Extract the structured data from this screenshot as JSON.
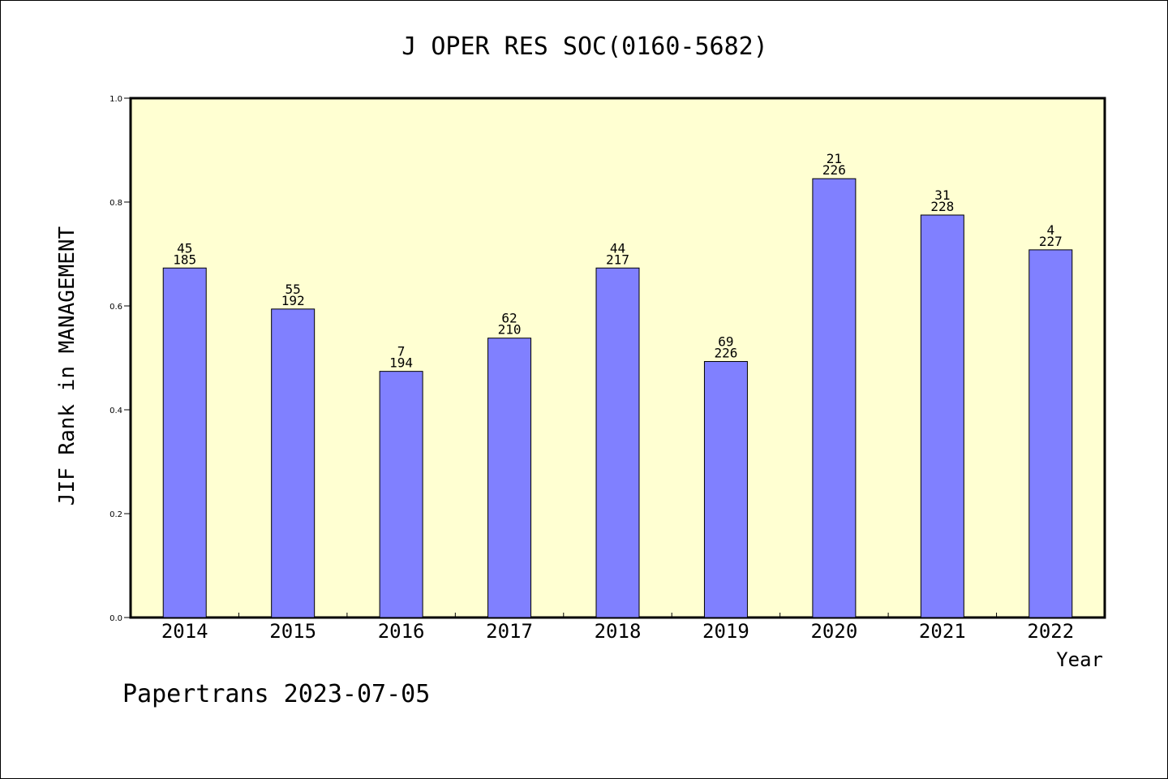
{
  "chart_data": {
    "type": "bar",
    "title": "J OPER RES SOC(0160-5682)",
    "xlabel": "Year",
    "ylabel": "JIF Rank in MANAGEMENT",
    "ylim": [
      0,
      1.0
    ],
    "yticks": [
      "0.0",
      "0.2",
      "0.4",
      "0.6",
      "0.8",
      "1.0"
    ],
    "categories": [
      "2014",
      "2015",
      "2016",
      "2017",
      "2018",
      "2019",
      "2020",
      "2021",
      "2022"
    ],
    "values": [
      0.673,
      0.594,
      0.474,
      0.538,
      0.673,
      0.493,
      0.845,
      0.775,
      0.708
    ],
    "rank_labels": [
      "45",
      "55",
      "7",
      "62",
      "44",
      "69",
      "21",
      "31",
      "4"
    ],
    "total_labels": [
      "185",
      "192",
      "194",
      "210",
      "217",
      "226",
      "226",
      "228",
      "227"
    ],
    "grid": false,
    "colors": {
      "plot_background": "#ffffd2",
      "bar_fill": "#8080ff",
      "bar_stroke": "#000000"
    }
  },
  "footer": {
    "text": "Papertrans 2023-07-05"
  }
}
